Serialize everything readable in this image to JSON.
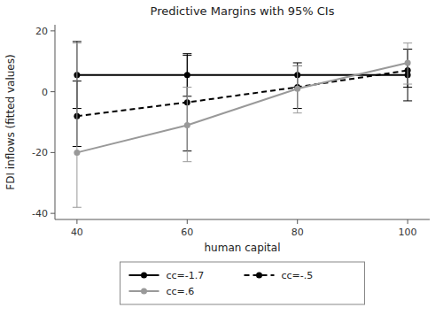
{
  "chart_data": {
    "type": "line",
    "title": "Predictive Margins with 95% CIs",
    "xlabel": "human capital",
    "ylabel": "FDI inflows (fitted values)",
    "x": [
      40,
      60,
      80,
      100
    ],
    "xlim": [
      36,
      104
    ],
    "ylim": [
      -42,
      22
    ],
    "xticks": [
      40,
      60,
      80,
      100
    ],
    "yticks": [
      -40,
      -20,
      0,
      20
    ],
    "grid": false,
    "legend": "bottom",
    "series": [
      {
        "name": "cc=-1.7",
        "color": "#000000",
        "line_style": "solid",
        "marker": "circle",
        "values": [
          5.5,
          5.5,
          5.5,
          5.5
        ],
        "upper": [
          16.5,
          12.5,
          9.5,
          14.0
        ],
        "lower": [
          -5.5,
          -1.5,
          1.5,
          -3.0
        ]
      },
      {
        "name": "cc=-.5",
        "color": "#000000",
        "line_style": "dashed",
        "marker": "circle",
        "values": [
          -8.0,
          -3.5,
          1.5,
          7.0
        ],
        "upper": [
          3.5,
          12.0,
          8.5,
          14.0
        ],
        "lower": [
          -18.0,
          -19.5,
          -5.5,
          1.5
        ]
      },
      {
        "name": "cc=.6",
        "color": "#999999",
        "line_style": "solid",
        "marker": "circle",
        "values": [
          -20.0,
          -11.0,
          1.0,
          9.5
        ],
        "upper": [
          16.0,
          1.5,
          8.5,
          16.0
        ],
        "lower": [
          -38.0,
          -23.0,
          -7.0,
          2.5
        ]
      }
    ]
  }
}
